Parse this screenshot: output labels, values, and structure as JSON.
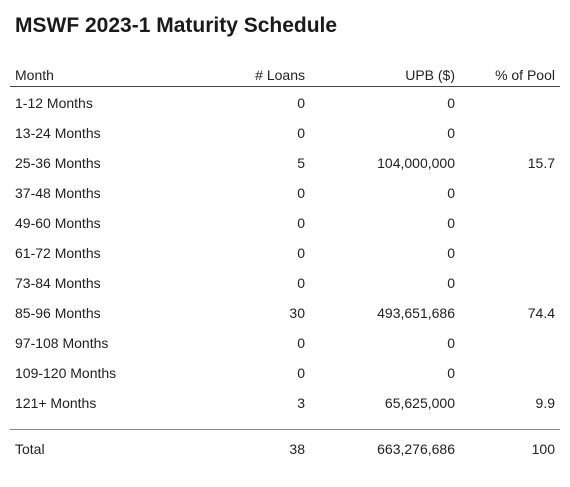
{
  "title": "MSWF 2023-1 Maturity Schedule",
  "columns": {
    "month": "Month",
    "loans": "# Loans",
    "upb": "UPB ($)",
    "pct": "% of Pool"
  },
  "rows": [
    {
      "month": "1-12 Months",
      "loans": "0",
      "upb": "0",
      "pct": ""
    },
    {
      "month": "13-24 Months",
      "loans": "0",
      "upb": "0",
      "pct": ""
    },
    {
      "month": "25-36 Months",
      "loans": "5",
      "upb": "104,000,000",
      "pct": "15.7"
    },
    {
      "month": "37-48 Months",
      "loans": "0",
      "upb": "0",
      "pct": ""
    },
    {
      "month": "49-60 Months",
      "loans": "0",
      "upb": "0",
      "pct": ""
    },
    {
      "month": "61-72 Months",
      "loans": "0",
      "upb": "0",
      "pct": ""
    },
    {
      "month": "73-84 Months",
      "loans": "0",
      "upb": "0",
      "pct": ""
    },
    {
      "month": "85-96 Months",
      "loans": "30",
      "upb": "493,651,686",
      "pct": "74.4"
    },
    {
      "month": "97-108 Months",
      "loans": "0",
      "upb": "0",
      "pct": ""
    },
    {
      "month": "109-120 Months",
      "loans": "0",
      "upb": "0",
      "pct": ""
    },
    {
      "month": "121+ Months",
      "loans": "3",
      "upb": "65,625,000",
      "pct": "9.9"
    }
  ],
  "total": {
    "label": "Total",
    "loans": "38",
    "upb": "663,276,686",
    "pct": "100"
  }
}
